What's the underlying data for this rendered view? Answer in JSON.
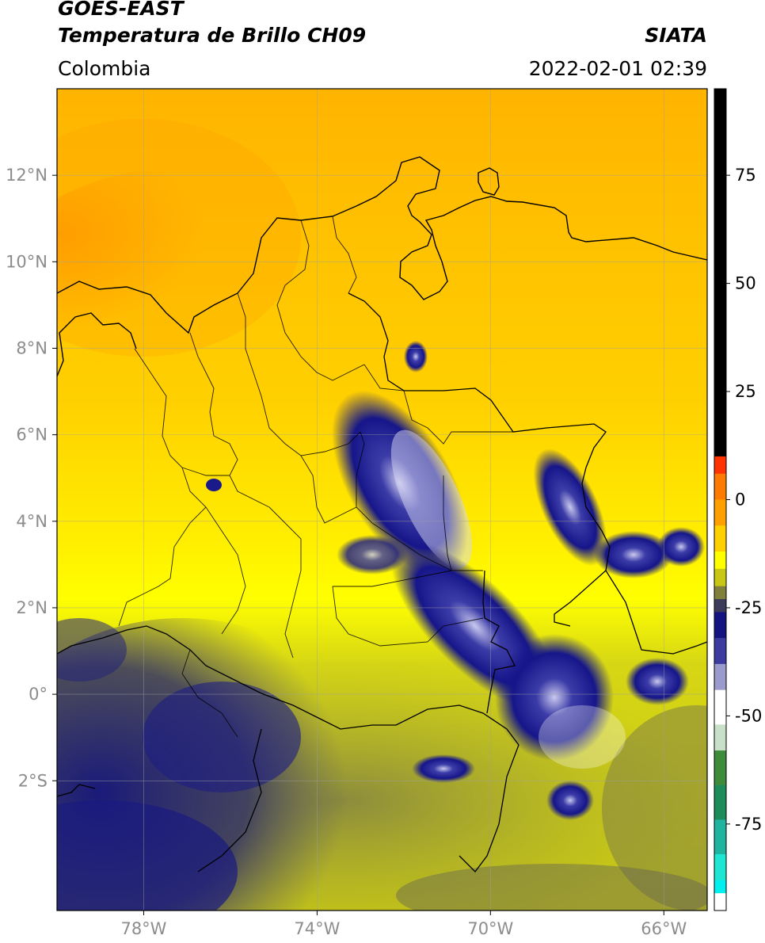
{
  "header": {
    "satellite": "GOES-EAST",
    "product": "Temperatura de Brillo CH09",
    "region": "Colombia",
    "agency": "SIATA",
    "datetime": "2022-02-01 02:39"
  },
  "map": {
    "lon_range": [
      -80,
      -65
    ],
    "lat_range": [
      -5,
      14
    ],
    "lon_ticks": [
      {
        "value": -78,
        "label": "78°W"
      },
      {
        "value": -74,
        "label": "74°W"
      },
      {
        "value": -70,
        "label": "70°W"
      },
      {
        "value": -66,
        "label": "66°W"
      }
    ],
    "lat_ticks": [
      {
        "value": 12,
        "label": "12°N"
      },
      {
        "value": 10,
        "label": "10°N"
      },
      {
        "value": 8,
        "label": "8°N"
      },
      {
        "value": 6,
        "label": "6°N"
      },
      {
        "value": 4,
        "label": "4°N"
      },
      {
        "value": 2,
        "label": "2°N"
      },
      {
        "value": 0,
        "label": "0°"
      },
      {
        "value": -2,
        "label": "2°S"
      }
    ],
    "gridlines": true
  },
  "colorbar": {
    "range": [
      -95,
      95
    ],
    "ticks": [
      {
        "value": 75,
        "label": "75"
      },
      {
        "value": 50,
        "label": "50"
      },
      {
        "value": 25,
        "label": "25"
      },
      {
        "value": 0,
        "label": "0"
      },
      {
        "value": -25,
        "label": "-25"
      },
      {
        "value": -50,
        "label": "-50"
      },
      {
        "value": -75,
        "label": "-75"
      }
    ],
    "stops": [
      {
        "from": 10,
        "to": 95,
        "color": "#000000"
      },
      {
        "from": 6,
        "to": 10,
        "color": "#ff3300"
      },
      {
        "from": 0,
        "to": 6,
        "color": "#ff7a00"
      },
      {
        "from": -6,
        "to": 0,
        "color": "#ffa000"
      },
      {
        "from": -12,
        "to": -6,
        "color": "#ffd000"
      },
      {
        "from": -16,
        "to": -12,
        "color": "#ffff00"
      },
      {
        "from": -20,
        "to": -16,
        "color": "#c8c814"
      },
      {
        "from": -23,
        "to": -20,
        "color": "#80803c"
      },
      {
        "from": -26,
        "to": -23,
        "color": "#3c3c5a"
      },
      {
        "from": -32,
        "to": -26,
        "color": "#141480"
      },
      {
        "from": -38,
        "to": -32,
        "color": "#3c3ca0"
      },
      {
        "from": -44,
        "to": -38,
        "color": "#9a9acc"
      },
      {
        "from": -52,
        "to": -44,
        "color": "#ffffff"
      },
      {
        "from": -58,
        "to": -52,
        "color": "#c8e0c8"
      },
      {
        "from": -66,
        "to": -58,
        "color": "#3c8c3c"
      },
      {
        "from": -74,
        "to": -66,
        "color": "#1e8c5a"
      },
      {
        "from": -82,
        "to": -74,
        "color": "#1eb4a0"
      },
      {
        "from": -88,
        "to": -82,
        "color": "#1ee6d2"
      },
      {
        "from": -91,
        "to": -88,
        "color": "#00f0f0"
      },
      {
        "from": -95,
        "to": -91,
        "color": "#ffffff"
      }
    ]
  }
}
